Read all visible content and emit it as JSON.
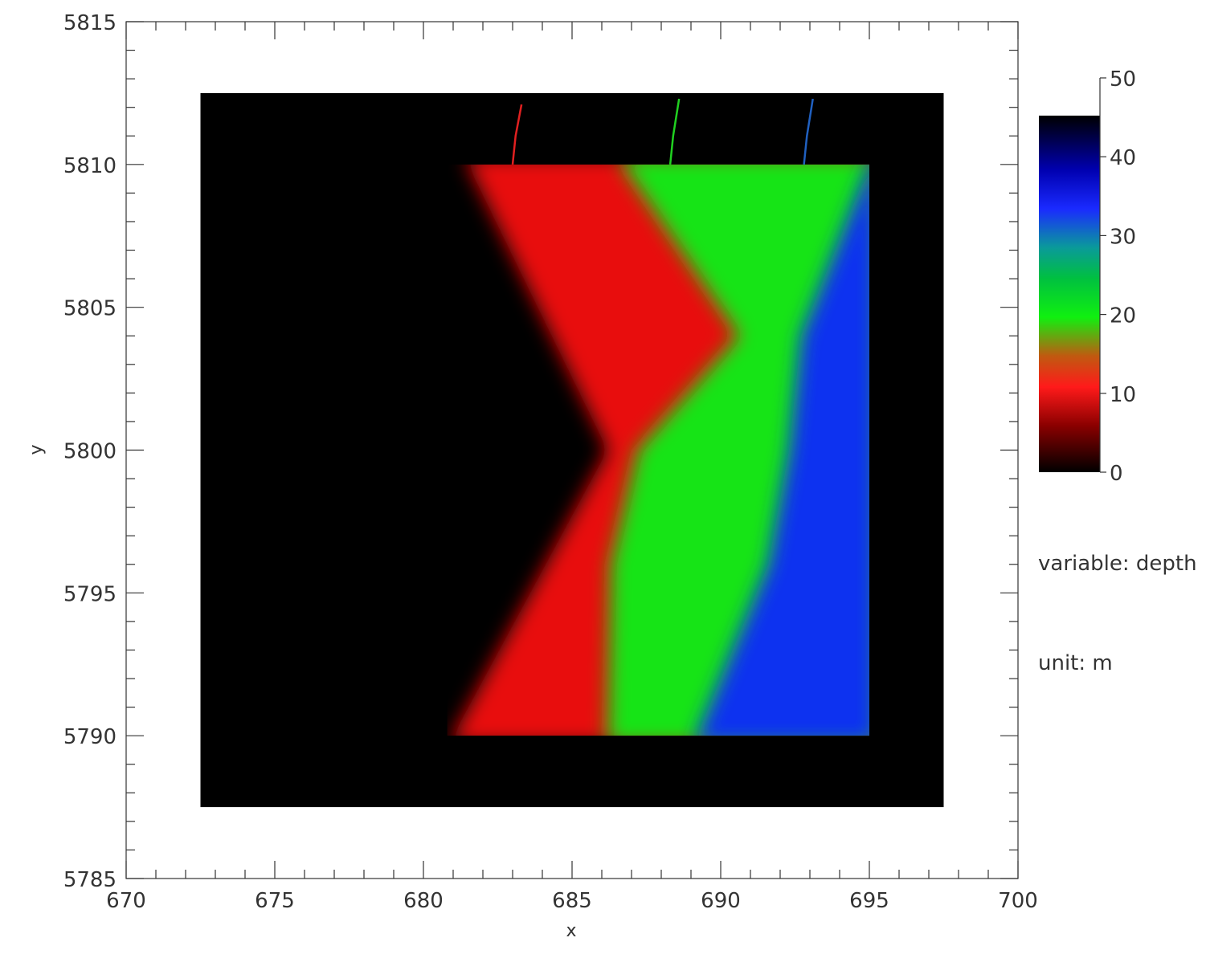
{
  "chart_data": {
    "type": "heatmap",
    "xlabel": "x",
    "ylabel": "y",
    "xlim": [
      670,
      700
    ],
    "ylim": [
      5785,
      5815
    ],
    "x_ticks": [
      "670",
      "675",
      "680",
      "685",
      "690",
      "695",
      "700"
    ],
    "y_ticks": [
      "5785",
      "5790",
      "5795",
      "5800",
      "5805",
      "5810",
      "5815"
    ],
    "colorbar": {
      "range": [
        0,
        50
      ],
      "display_max": 46,
      "ticks": [
        "0",
        "10",
        "20",
        "30",
        "40",
        "50"
      ],
      "colormap": [
        {
          "value": 0,
          "color": "#000000"
        },
        {
          "value": 6,
          "color": "#8a0000"
        },
        {
          "value": 11,
          "color": "#ff1a1a"
        },
        {
          "value": 15,
          "color": "#c05a10"
        },
        {
          "value": 20,
          "color": "#10f010"
        },
        {
          "value": 25,
          "color": "#00c040"
        },
        {
          "value": 29,
          "color": "#0a9a9a"
        },
        {
          "value": 34,
          "color": "#1a2aff"
        },
        {
          "value": 39,
          "color": "#0000b0"
        },
        {
          "value": 46,
          "color": "#000000"
        }
      ]
    },
    "outer_extent": {
      "x": [
        672.5,
        697.5
      ],
      "y": [
        5787.5,
        5812.5
      ]
    },
    "inner_extent": {
      "x": [
        680.8,
        695
      ],
      "y": [
        5790,
        5810
      ]
    },
    "depth_bands": [
      {
        "name": "black",
        "color": "#000000",
        "x": [
          680.8,
          685.5,
          681.5
        ],
        "y": [
          5790,
          5800,
          5810
        ]
      },
      {
        "name": "red",
        "color": "#e81010",
        "x": [
          681,
          686.2,
          681.5
        ],
        "y": [
          5790,
          5800,
          5810
        ]
      },
      {
        "name": "green",
        "color": "#18e418",
        "x": [
          686.2,
          686.3,
          687.2,
          690.6,
          686.7
        ],
        "y": [
          5790,
          5796,
          5800,
          5804,
          5810
        ]
      },
      {
        "name": "blue",
        "color": "#1030f0",
        "x": [
          689.2,
          691.6,
          692.3,
          692.7,
          695
        ],
        "y": [
          5790,
          5796,
          5800,
          5804,
          5810
        ]
      }
    ],
    "contours": {
      "red": [
        [
          683.3,
          5812.1
        ],
        [
          683.1,
          5811
        ],
        [
          683,
          5810
        ]
      ],
      "green": [
        [
          688.6,
          5812.3
        ],
        [
          688.4,
          5811
        ],
        [
          688.3,
          5810
        ]
      ],
      "blue": [
        [
          693.1,
          5812.3
        ],
        [
          692.9,
          5811
        ],
        [
          692.8,
          5810
        ]
      ]
    }
  },
  "annotations": {
    "variable": "variable: depth",
    "unit": "unit: m"
  }
}
